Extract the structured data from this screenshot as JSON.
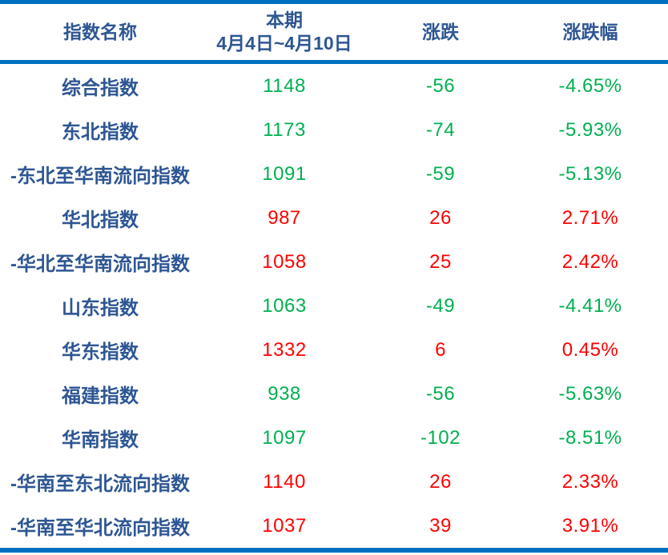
{
  "colors": {
    "accent_blue": "#0070C0",
    "text_blue": "#2E5693",
    "up_red": "#FF0000",
    "down_green": "#00B050"
  },
  "table": {
    "header": {
      "col_name": "指数名称",
      "col_period_line1": "本期",
      "col_period_line2": "4月4日~4月10日",
      "col_change": "涨跌",
      "col_change_pct": "涨跌幅"
    },
    "rows": [
      {
        "name": "综合指数",
        "value": "1148",
        "change": "-56",
        "pct": "-4.65%",
        "trend": "down"
      },
      {
        "name": "东北指数",
        "value": "1173",
        "change": "-74",
        "pct": "-5.93%",
        "trend": "down"
      },
      {
        "name": "-东北至华南流向指数",
        "value": "1091",
        "change": "-59",
        "pct": "-5.13%",
        "trend": "down"
      },
      {
        "name": "华北指数",
        "value": "987",
        "change": "26",
        "pct": "2.71%",
        "trend": "up"
      },
      {
        "name": "-华北至华南流向指数",
        "value": "1058",
        "change": "25",
        "pct": "2.42%",
        "trend": "up"
      },
      {
        "name": "山东指数",
        "value": "1063",
        "change": "-49",
        "pct": "-4.41%",
        "trend": "down"
      },
      {
        "name": "华东指数",
        "value": "1332",
        "change": "6",
        "pct": "0.45%",
        "trend": "up"
      },
      {
        "name": "福建指数",
        "value": "938",
        "change": "-56",
        "pct": "-5.63%",
        "trend": "down"
      },
      {
        "name": "华南指数",
        "value": "1097",
        "change": "-102",
        "pct": "-8.51%",
        "trend": "down"
      },
      {
        "name": "-华南至东北流向指数",
        "value": "1140",
        "change": "26",
        "pct": "2.33%",
        "trend": "up"
      },
      {
        "name": "-华南至华北流向指数",
        "value": "1037",
        "change": "39",
        "pct": "3.91%",
        "trend": "up"
      }
    ]
  }
}
